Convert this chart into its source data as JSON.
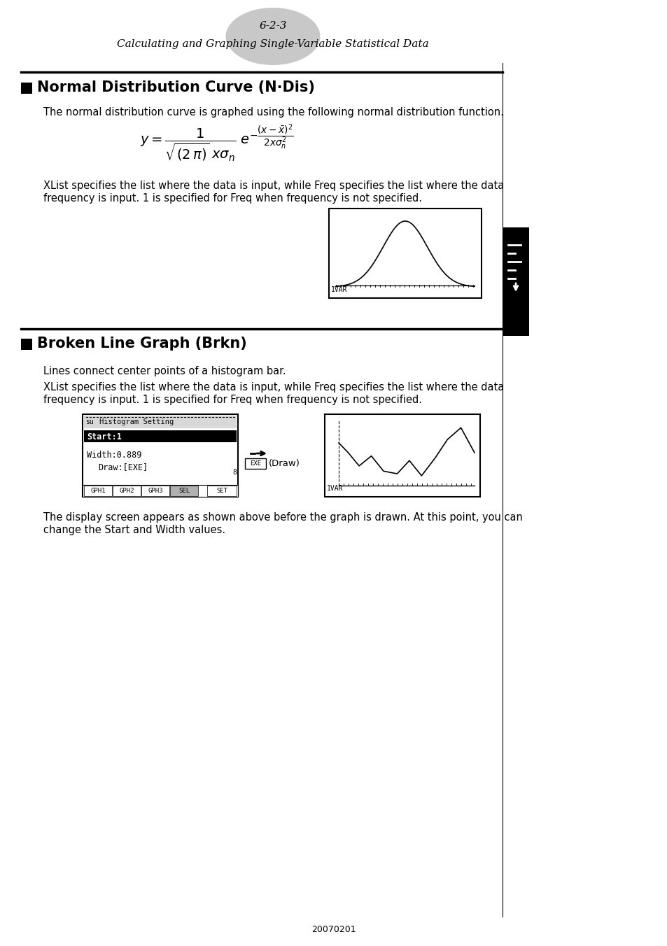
{
  "page_number": "6-2-3",
  "page_subtitle": "Calculating and Graphing Single-Variable Statistical Data",
  "section1_title": "Normal Distribution Curve (N·Dis)",
  "section1_body1": "The normal distribution curve is graphed using the following normal distribution function.",
  "section1_body2a": "XList specifies the list where the data is input, while Freq specifies the list where the data",
  "section1_body2b": "frequency is input. 1 is specified for Freq when frequency is not specified.",
  "section2_title": "Broken Line Graph (Brkn)",
  "section2_body1": "Lines connect center points of a histogram bar.",
  "section2_body2a": "XList specifies the list where the data is input, while Freq specifies the list where the data",
  "section2_body2b": "frequency is input. 1 is specified for Freq when frequency is not specified.",
  "section2_body3a": "The display screen appears as shown above before the graph is drawn. At this point, you can",
  "section2_body3b": "change the Start and Width values.",
  "footer": "20070201",
  "bg_color": "#ffffff",
  "text_color": "#000000",
  "header_ellipse_color": "#c8c8c8",
  "sidebar_color": "#1a1a1a",
  "hs_header_text": "Histogram Setting",
  "hs_su": "su",
  "hs_start": "Start:1",
  "hs_width": "Width:0.889",
  "hs_draw": "Draw:[EXE]",
  "hs_tabs": [
    "GPH1",
    "GPH2",
    "GPH3",
    "SEL"
  ],
  "hs_set": "SET",
  "label_1var": "1VAR",
  "exe_label": "EXE",
  "draw_label": "(Draw)"
}
